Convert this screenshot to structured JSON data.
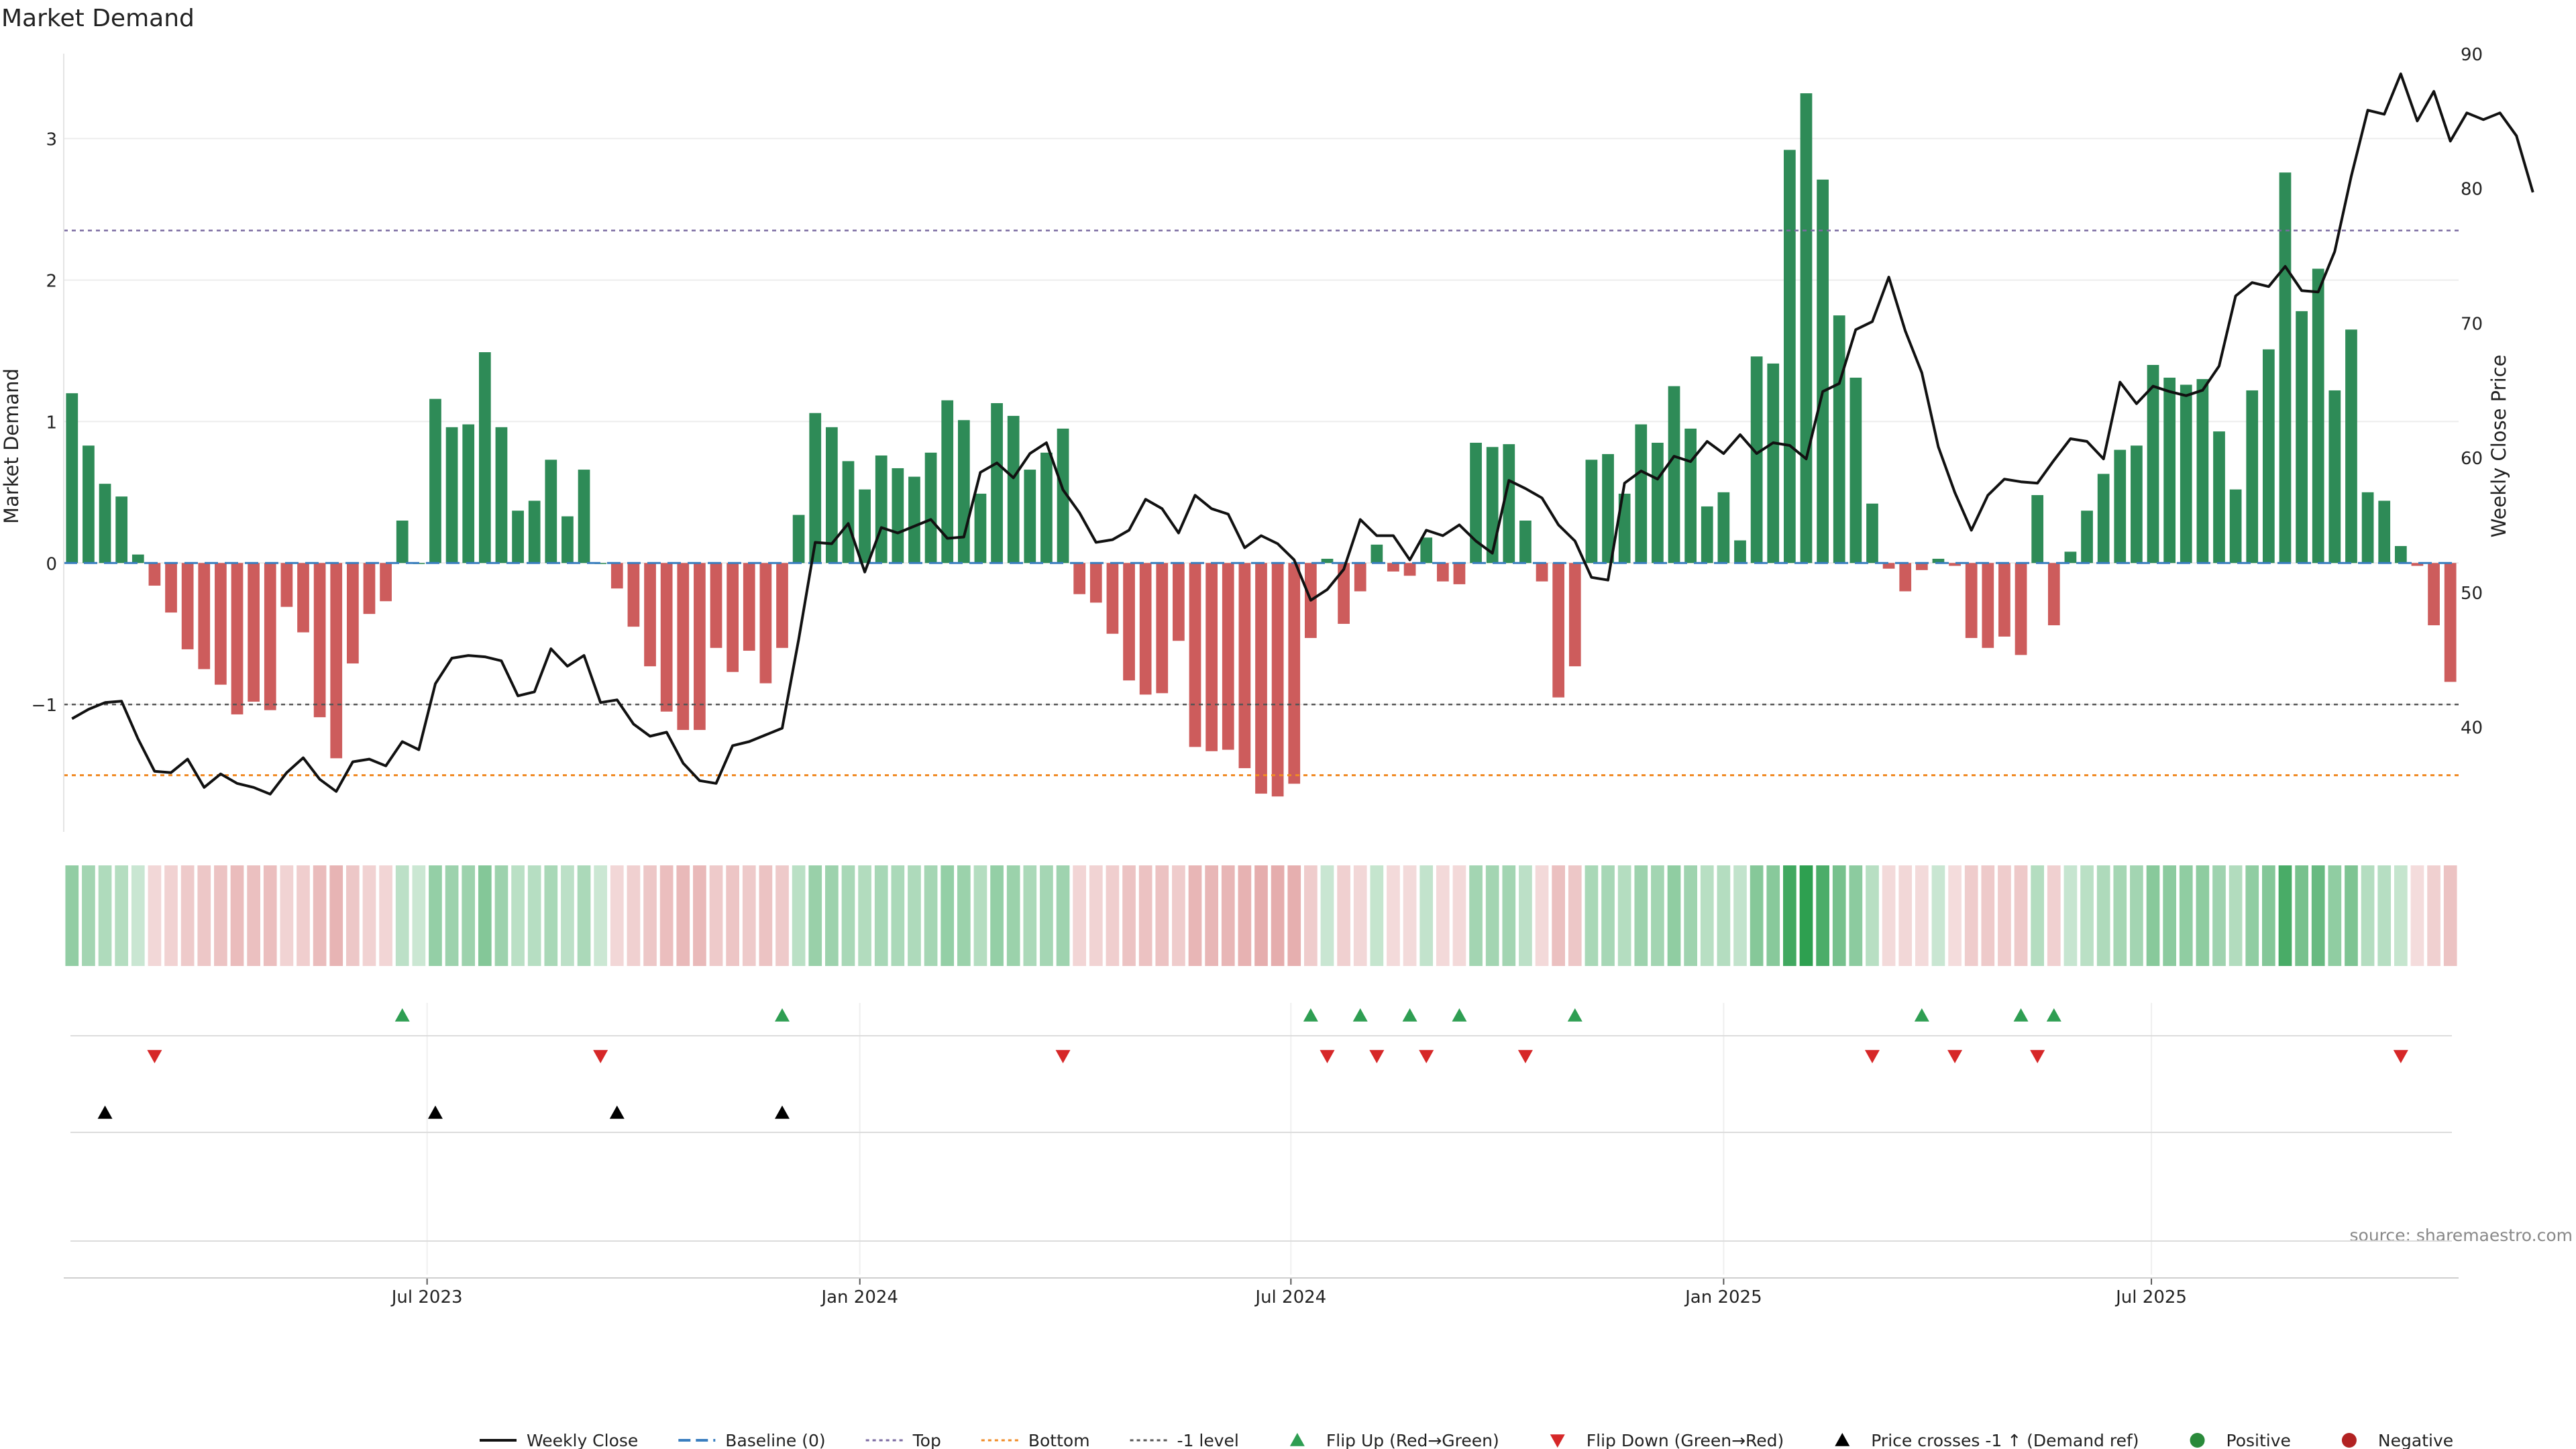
{
  "chart_data": {
    "type": "bar",
    "title": "Market Demand",
    "ylabel": "Market Demand",
    "y2label": "Weekly Close Price",
    "ylim": [
      -1.9,
      3.6
    ],
    "y2lim": [
      32.2,
      90
    ],
    "yticks": [
      {
        "value": -1,
        "label": "−1"
      },
      {
        "value": 0,
        "label": "0"
      },
      {
        "value": 1,
        "label": "1"
      },
      {
        "value": 2,
        "label": "2"
      },
      {
        "value": 3,
        "label": "3"
      }
    ],
    "y2ticks": [
      {
        "value": 40,
        "label": "40"
      },
      {
        "value": 50,
        "label": "50"
      },
      {
        "value": 60,
        "label": "60"
      },
      {
        "value": 70,
        "label": "70"
      },
      {
        "value": 80,
        "label": "80"
      },
      {
        "value": 90,
        "label": "90"
      }
    ],
    "xticks": [
      {
        "label": "Jul 2023",
        "index": 21.5
      },
      {
        "label": "Jan 2024",
        "index": 47.7
      },
      {
        "label": "Jul 2024",
        "index": 73.8
      },
      {
        "label": "Jan 2025",
        "index": 100.0
      },
      {
        "label": "Jul 2025",
        "index": 125.9
      }
    ],
    "reference_lines": {
      "top": 2.35,
      "bottom": -1.5,
      "minus_one": -1,
      "baseline": 0
    },
    "demand": [
      1.2,
      0.83,
      0.56,
      0.47,
      0.06,
      -0.16,
      -0.35,
      -0.61,
      -0.75,
      -0.86,
      -1.07,
      -0.98,
      -1.04,
      -0.31,
      -0.49,
      -1.09,
      -1.38,
      -0.71,
      -0.36,
      -0.27,
      0.3,
      0,
      1.16,
      0.96,
      0.98,
      1.49,
      0.96,
      0.37,
      0.44,
      0.73,
      0.33,
      0.66,
      0,
      -0.18,
      -0.45,
      -0.73,
      -1.05,
      -1.18,
      -1.18,
      -0.6,
      -0.77,
      -0.62,
      -0.85,
      -0.6,
      0.34,
      1.06,
      0.96,
      0.72,
      0.52,
      0.76,
      0.67,
      0.61,
      0.78,
      1.15,
      1.01,
      0.49,
      1.13,
      1.04,
      0.66,
      0.78,
      0.95,
      -0.22,
      -0.28,
      -0.5,
      -0.83,
      -0.93,
      -0.92,
      -0.55,
      -1.3,
      -1.33,
      -1.32,
      -1.45,
      -1.63,
      -1.65,
      -1.56,
      -0.53,
      0.03,
      -0.43,
      -0.2,
      0.13,
      -0.06,
      -0.09,
      0.18,
      -0.13,
      -0.15,
      0.85,
      0.82,
      0.84,
      0.3,
      -0.13,
      -0.95,
      -0.73,
      0.73,
      0.77,
      0.49,
      0.98,
      0.85,
      1.25,
      0.95,
      0.4,
      0.5,
      0.16,
      1.46,
      1.41,
      2.92,
      3.32,
      2.71,
      1.75,
      1.31,
      0.42,
      -0.04,
      -0.2,
      -0.05,
      0.03,
      -0.02,
      -0.53,
      -0.6,
      -0.52,
      -0.65,
      0.48,
      -0.44,
      0.08,
      0.37,
      0.63,
      0.8,
      0.83,
      1.4,
      1.31,
      1.26,
      1.3,
      0.93,
      0.52,
      1.22,
      1.51,
      2.76,
      1.78,
      2.08,
      1.22,
      1.65,
      0.5,
      0.44,
      0.12,
      -0.02,
      -0.44,
      -0.84
    ],
    "weekly_close": [
      40.6,
      41.3,
      41.8,
      41.9,
      39.1,
      36.7,
      36.6,
      37.6,
      35.5,
      36.5,
      35.8,
      35.5,
      35.0,
      36.6,
      37.7,
      36.1,
      35.2,
      37.4,
      37.6,
      37.1,
      38.9,
      38.3,
      43.2,
      45.1,
      45.3,
      45.2,
      44.9,
      42.3,
      42.6,
      45.8,
      44.5,
      45.3,
      41.8,
      42.0,
      40.2,
      39.3,
      39.6,
      37.3,
      36.0,
      35.8,
      38.6,
      38.9,
      39.4,
      39.9,
      46.5,
      53.7,
      53.6,
      55.1,
      51.5,
      54.8,
      54.4,
      54.9,
      55.4,
      54.0,
      54.1,
      58.9,
      59.6,
      58.5,
      60.3,
      61.1,
      57.6,
      55.9,
      53.7,
      53.9,
      54.6,
      56.9,
      56.2,
      54.4,
      57.2,
      56.2,
      55.8,
      53.3,
      54.2,
      53.6,
      52.4,
      49.4,
      50.2,
      51.7,
      55.4,
      54.2,
      54.2,
      52.4,
      54.6,
      54.2,
      55.0,
      53.8,
      52.9,
      58.3,
      57.7,
      57.0,
      55.0,
      53.8,
      51.1,
      50.9,
      58.1,
      59.0,
      58.4,
      60.1,
      59.7,
      61.2,
      60.3,
      61.7,
      60.3,
      61.1,
      60.9,
      59.9,
      64.9,
      65.5,
      69.5,
      70.1,
      73.4,
      69.4,
      66.3,
      60.8,
      57.4,
      54.6,
      57.2,
      58.4,
      58.2,
      58.1,
      59.8,
      61.4,
      61.2,
      59.9,
      65.6,
      64.0,
      65.3,
      64.9,
      64.6,
      65.0,
      66.8,
      72.0,
      73.0,
      72.7,
      74.2,
      72.4,
      72.3,
      75.3,
      80.9,
      85.8,
      85.5,
      88.5,
      85.0,
      87.2,
      83.5,
      85.6,
      85.1,
      85.6,
      83.9,
      79.7
    ],
    "flip_up": [
      20,
      43,
      75,
      78,
      81,
      84,
      91,
      112,
      118,
      120
    ],
    "flip_down": [
      5,
      32,
      60,
      76,
      79,
      82,
      88,
      109,
      114,
      119,
      141
    ],
    "price_cross": [
      2,
      22,
      33,
      43
    ],
    "legend": [
      {
        "label": "Weekly Close",
        "kind": "line",
        "color": "#111111"
      },
      {
        "label": "Baseline (0)",
        "kind": "dash",
        "color": "#3a7ebf"
      },
      {
        "label": "Top",
        "kind": "dot",
        "color": "#7a6aa0"
      },
      {
        "label": "Bottom",
        "kind": "dot",
        "color": "#f08a24"
      },
      {
        "label": "-1 level",
        "kind": "dot",
        "color": "#555555"
      },
      {
        "label": "Flip Up (Red→Green)",
        "kind": "tri-up",
        "color": "#2e9e52"
      },
      {
        "label": "Flip Down (Green→Red)",
        "kind": "tri-down",
        "color": "#d62728"
      },
      {
        "label": "Price crosses -1 ↑ (Demand ref)",
        "kind": "tri-up",
        "color": "#000000"
      },
      {
        "label": "Positive",
        "kind": "circle",
        "color": "#2a8a3a"
      },
      {
        "label": "Negative",
        "kind": "circle",
        "color": "#b22222"
      }
    ],
    "colors": {
      "positive": "#2e8b57",
      "negative": "#cd5c5c",
      "close": "#111111"
    }
  },
  "source_note": "source: sharemaestro.com"
}
